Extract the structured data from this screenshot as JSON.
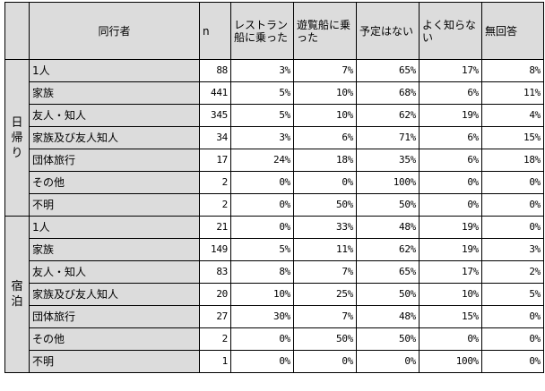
{
  "headers": {
    "companion": "同行者",
    "n": "n",
    "restaurant_boat": "レストラン船に乗った",
    "sightseeing_boat": "遊覧船に乗った",
    "no_plan": "予定はない",
    "dont_know": "よく知らない",
    "no_answer": "無回答"
  },
  "groups": [
    {
      "label": "日帰り",
      "rows": [
        {
          "cat": "1人",
          "n": "88",
          "v1": "3%",
          "v2": "7%",
          "v3": "65%",
          "v4": "17%",
          "v5": "8%"
        },
        {
          "cat": "家族",
          "n": "441",
          "v1": "5%",
          "v2": "10%",
          "v3": "68%",
          "v4": "6%",
          "v5": "11%"
        },
        {
          "cat": "友人・知人",
          "n": "345",
          "v1": "5%",
          "v2": "10%",
          "v3": "62%",
          "v4": "19%",
          "v5": "4%"
        },
        {
          "cat": "家族及び友人知人",
          "n": "34",
          "v1": "3%",
          "v2": "6%",
          "v3": "71%",
          "v4": "6%",
          "v5": "15%"
        },
        {
          "cat": "団体旅行",
          "n": "17",
          "v1": "24%",
          "v2": "18%",
          "v3": "35%",
          "v4": "6%",
          "v5": "18%"
        },
        {
          "cat": "その他",
          "n": "2",
          "v1": "0%",
          "v2": "0%",
          "v3": "100%",
          "v4": "0%",
          "v5": "0%"
        },
        {
          "cat": "不明",
          "n": "2",
          "v1": "0%",
          "v2": "50%",
          "v3": "50%",
          "v4": "0%",
          "v5": "0%"
        }
      ]
    },
    {
      "label": "宿泊",
      "rows": [
        {
          "cat": "1人",
          "n": "21",
          "v1": "0%",
          "v2": "33%",
          "v3": "48%",
          "v4": "19%",
          "v5": "0%"
        },
        {
          "cat": "家族",
          "n": "149",
          "v1": "5%",
          "v2": "11%",
          "v3": "62%",
          "v4": "19%",
          "v5": "3%"
        },
        {
          "cat": "友人・知人",
          "n": "83",
          "v1": "8%",
          "v2": "7%",
          "v3": "65%",
          "v4": "17%",
          "v5": "2%"
        },
        {
          "cat": "家族及び友人知人",
          "n": "20",
          "v1": "10%",
          "v2": "25%",
          "v3": "50%",
          "v4": "10%",
          "v5": "5%"
        },
        {
          "cat": "団体旅行",
          "n": "27",
          "v1": "30%",
          "v2": "7%",
          "v3": "48%",
          "v4": "15%",
          "v5": "0%"
        },
        {
          "cat": "その他",
          "n": "2",
          "v1": "0%",
          "v2": "50%",
          "v3": "50%",
          "v4": "0%",
          "v5": "0%"
        },
        {
          "cat": "不明",
          "n": "1",
          "v1": "0%",
          "v2": "0%",
          "v3": "0%",
          "v4": "100%",
          "v5": "0%"
        }
      ]
    }
  ]
}
